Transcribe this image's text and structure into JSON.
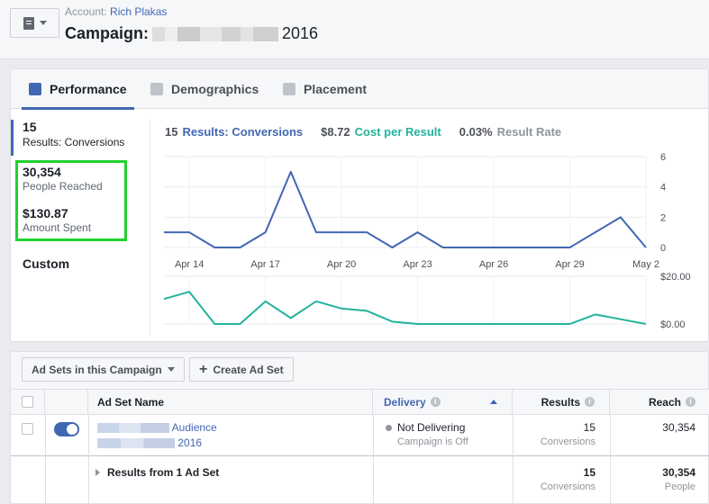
{
  "header": {
    "account_prefix": "Account:",
    "account_name": "Rich Plakas",
    "campaign_prefix": "Campaign:",
    "campaign_suffix": "2016"
  },
  "tabs": [
    {
      "label": "Performance",
      "active": true
    },
    {
      "label": "Demographics",
      "active": false
    },
    {
      "label": "Placement",
      "active": false
    }
  ],
  "summary": {
    "results_value": "15",
    "results_label": "Results: Conversions",
    "reach_value": "30,354",
    "reach_label": "People Reached",
    "spent_value": "$130.87",
    "spent_label": "Amount Spent",
    "custom_label": "Custom"
  },
  "legend": {
    "results_num": "15",
    "results_label": "Results: Conversions",
    "cpr_num": "$8.72",
    "cpr_label": "Cost per Result",
    "rate_num": "0.03%",
    "rate_label": "Result Rate"
  },
  "chart_data": [
    {
      "type": "line",
      "title": "",
      "x": [
        "Apr 13",
        "Apr 14",
        "Apr 15",
        "Apr 16",
        "Apr 17",
        "Apr 18",
        "Apr 19",
        "Apr 20",
        "Apr 21",
        "Apr 22",
        "Apr 23",
        "Apr 24",
        "Apr 25",
        "Apr 26",
        "Apr 27",
        "Apr 28",
        "Apr 29",
        "Apr 30",
        "May 1",
        "May 2"
      ],
      "x_ticks": [
        "Apr 14",
        "Apr 17",
        "Apr 20",
        "Apr 23",
        "Apr 26",
        "Apr 29",
        "May 2"
      ],
      "series": [
        {
          "name": "Results: Conversions",
          "color": "#4267b2",
          "values": [
            1,
            1,
            0,
            0,
            1,
            5,
            1,
            1,
            1,
            0,
            1,
            0,
            0,
            0,
            0,
            0,
            0,
            1,
            2,
            0
          ]
        }
      ],
      "ylim": [
        0,
        6
      ],
      "y_ticks": [
        "6",
        "4",
        "2",
        "0"
      ],
      "grid": true
    },
    {
      "type": "line",
      "title": "",
      "x": [
        "Apr 13",
        "Apr 14",
        "Apr 15",
        "Apr 16",
        "Apr 17",
        "Apr 18",
        "Apr 19",
        "Apr 20",
        "Apr 21",
        "Apr 22",
        "Apr 23",
        "Apr 24",
        "Apr 25",
        "Apr 26",
        "Apr 27",
        "Apr 28",
        "Apr 29",
        "Apr 30",
        "May 1",
        "May 2"
      ],
      "series": [
        {
          "name": "Cost per Result",
          "color": "#23b39e",
          "values": [
            10.5,
            13.5,
            0,
            0,
            9.5,
            2.5,
            9.5,
            6.5,
            5.5,
            1,
            0,
            0,
            0,
            0,
            0,
            0,
            0,
            4,
            2,
            0
          ]
        }
      ],
      "ylim": [
        0,
        20
      ],
      "y_ticks": [
        "$20.00",
        "$0.00"
      ],
      "grid": true
    }
  ],
  "adsets": {
    "dropdown_label": "Ad Sets in this Campaign",
    "create_label": "Create Ad Set",
    "columns": {
      "name": "Ad Set Name",
      "delivery": "Delivery",
      "results": "Results",
      "reach": "Reach"
    },
    "row": {
      "name_visible": "Audience",
      "name_line2_visible": "2016",
      "delivery_status": "Not Delivering",
      "delivery_sub": "Campaign is Off",
      "results": "15",
      "results_sub": "Conversions",
      "reach": "30,354"
    },
    "footer": {
      "label": "Results from 1 Ad Set",
      "results": "15",
      "results_sub": "Conversions",
      "reach": "30,354",
      "reach_sub": "People"
    }
  },
  "colors": {
    "accent": "#4267b2",
    "teal": "#23b39e",
    "highlight_box": "#1fd12f"
  }
}
